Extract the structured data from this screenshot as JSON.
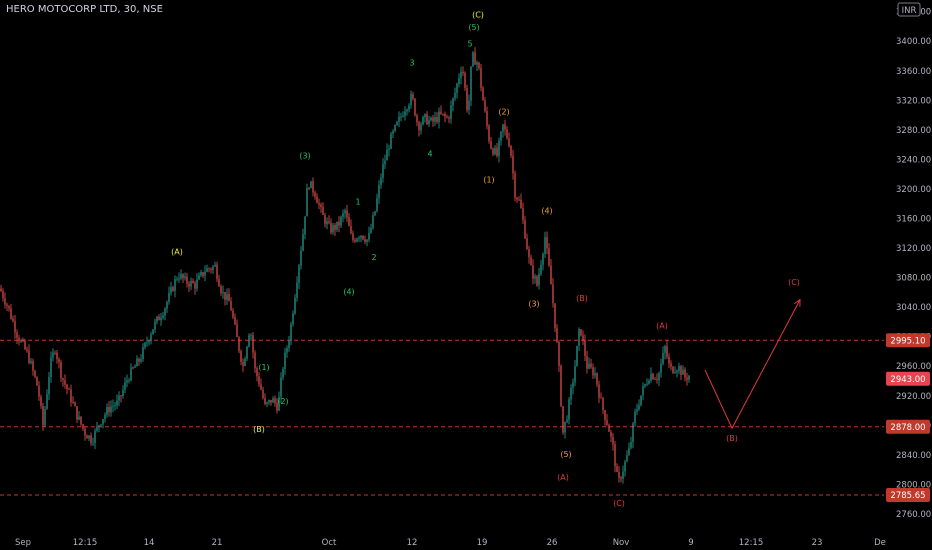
{
  "header": {
    "symbol_title": "HERO MOTOCORP LTD, 30, NSE",
    "currency": "INR"
  },
  "colors": {
    "background": "#000000",
    "up": "#26a69a",
    "down": "#ef5350",
    "wave_green": "#22c55e",
    "wave_yellow": "#e8e84a",
    "wave_orange": "#f0a030",
    "wave_red": "#e03a3a",
    "level_line": "#c0392b",
    "last_price_tag": "#e8434f",
    "level_tag": "#c0392b"
  },
  "chart_data": {
    "type": "candlestick",
    "title": "",
    "xlabel": "",
    "ylabel": "",
    "ylim": [
      2745,
      3445
    ],
    "x_tick_labels": [
      "Sep",
      "12:15",
      "14",
      "21",
      "Oct",
      "12",
      "19",
      "26",
      "Nov",
      "9",
      "12:15",
      "23",
      "De"
    ],
    "y_tick_labels": [
      2760,
      2800,
      2840,
      2880,
      2920,
      2960,
      3000,
      3040,
      3080,
      3120,
      3160,
      3200,
      3240,
      3280,
      3320,
      3360,
      3400,
      3440
    ],
    "price_path": [
      [
        0,
        3065
      ],
      [
        8,
        3040
      ],
      [
        18,
        3000
      ],
      [
        28,
        2975
      ],
      [
        38,
        2930
      ],
      [
        43,
        2880
      ],
      [
        50,
        2960
      ],
      [
        55,
        2985
      ],
      [
        62,
        2945
      ],
      [
        70,
        2920
      ],
      [
        78,
        2890
      ],
      [
        85,
        2870
      ],
      [
        92,
        2860
      ],
      [
        100,
        2885
      ],
      [
        110,
        2905
      ],
      [
        118,
        2910
      ],
      [
        128,
        2945
      ],
      [
        140,
        2970
      ],
      [
        152,
        3010
      ],
      [
        165,
        3040
      ],
      [
        178,
        3085
      ],
      [
        185,
        3075
      ],
      [
        195,
        3070
      ],
      [
        205,
        3090
      ],
      [
        215,
        3095
      ],
      [
        222,
        3060
      ],
      [
        230,
        3045
      ],
      [
        238,
        2990
      ],
      [
        243,
        2960
      ],
      [
        250,
        3015
      ],
      [
        255,
        2955
      ],
      [
        260,
        2935
      ],
      [
        265,
        2905
      ],
      [
        272,
        2915
      ],
      [
        278,
        2905
      ],
      [
        283,
        2960
      ],
      [
        290,
        3005
      ],
      [
        297,
        3080
      ],
      [
        303,
        3140
      ],
      [
        308,
        3210
      ],
      [
        315,
        3195
      ],
      [
        322,
        3165
      ],
      [
        330,
        3145
      ],
      [
        338,
        3150
      ],
      [
        345,
        3170
      ],
      [
        352,
        3130
      ],
      [
        360,
        3140
      ],
      [
        368,
        3130
      ],
      [
        375,
        3170
      ],
      [
        382,
        3225
      ],
      [
        390,
        3265
      ],
      [
        398,
        3290
      ],
      [
        405,
        3310
      ],
      [
        412,
        3325
      ],
      [
        418,
        3285
      ],
      [
        425,
        3295
      ],
      [
        432,
        3290
      ],
      [
        440,
        3300
      ],
      [
        448,
        3295
      ],
      [
        455,
        3330
      ],
      [
        462,
        3370
      ],
      [
        468,
        3300
      ],
      [
        472,
        3380
      ],
      [
        478,
        3370
      ],
      [
        484,
        3310
      ],
      [
        490,
        3260
      ],
      [
        497,
        3245
      ],
      [
        503,
        3285
      ],
      [
        510,
        3260
      ],
      [
        515,
        3195
      ],
      [
        520,
        3180
      ],
      [
        525,
        3140
      ],
      [
        530,
        3095
      ],
      [
        537,
        3070
      ],
      [
        545,
        3135
      ],
      [
        552,
        3060
      ],
      [
        558,
        2975
      ],
      [
        563,
        2870
      ],
      [
        568,
        2900
      ],
      [
        574,
        2950
      ],
      [
        580,
        3015
      ],
      [
        587,
        2960
      ],
      [
        595,
        2950
      ],
      [
        602,
        2905
      ],
      [
        608,
        2880
      ],
      [
        613,
        2850
      ],
      [
        618,
        2800
      ],
      [
        624,
        2825
      ],
      [
        630,
        2850
      ],
      [
        635,
        2895
      ],
      [
        642,
        2925
      ],
      [
        650,
        2950
      ],
      [
        658,
        2945
      ],
      [
        665,
        2985
      ],
      [
        670,
        2955
      ],
      [
        678,
        2960
      ],
      [
        685,
        2945
      ],
      [
        690,
        2948
      ]
    ],
    "projection_path": [
      [
        705,
        2955
      ],
      [
        732,
        2876
      ],
      [
        800,
        3050
      ]
    ],
    "levels": [
      {
        "value": 2995.1,
        "label": "2995.10"
      },
      {
        "value": 2878.0,
        "label": "2878.00"
      },
      {
        "value": 2785.65,
        "label": "2785.65"
      }
    ],
    "last_price": {
      "value": 2943.0,
      "label": "2943.00"
    },
    "wave_labels": [
      {
        "text": "(C)",
        "x": 478,
        "price": 3432,
        "color": "wave_yellow"
      },
      {
        "text": "(5)",
        "x": 474,
        "price": 3415,
        "color": "wave_green"
      },
      {
        "text": "5",
        "x": 470,
        "price": 3393,
        "color": "wave_green"
      },
      {
        "text": "3",
        "x": 412,
        "price": 3367,
        "color": "wave_green"
      },
      {
        "text": "4",
        "x": 430,
        "price": 3244,
        "color": "wave_green"
      },
      {
        "text": "(2)",
        "x": 504,
        "price": 3301,
        "color": "wave_orange"
      },
      {
        "text": "(1)",
        "x": 489,
        "price": 3209,
        "color": "wave_orange"
      },
      {
        "text": "(3)",
        "x": 305,
        "price": 3241,
        "color": "wave_green"
      },
      {
        "text": "1",
        "x": 358,
        "price": 3179,
        "color": "wave_green"
      },
      {
        "text": "2",
        "x": 374,
        "price": 3104,
        "color": "wave_green"
      },
      {
        "text": "(4)",
        "x": 349,
        "price": 3057,
        "color": "wave_green"
      },
      {
        "text": "(4)",
        "x": 547,
        "price": 3167,
        "color": "wave_orange"
      },
      {
        "text": "(3)",
        "x": 534,
        "price": 3041,
        "color": "wave_orange"
      },
      {
        "text": "(A)",
        "x": 177,
        "price": 3111,
        "color": "wave_yellow"
      },
      {
        "text": "(B)",
        "x": 259,
        "price": 2871,
        "color": "wave_yellow"
      },
      {
        "text": "(1)",
        "x": 264,
        "price": 2955,
        "color": "wave_green"
      },
      {
        "text": "(2)",
        "x": 283,
        "price": 2909,
        "color": "wave_green"
      },
      {
        "text": "(B)",
        "x": 582,
        "price": 3048,
        "color": "wave_red"
      },
      {
        "text": "(5)",
        "x": 566,
        "price": 2837,
        "color": "wave_orange"
      },
      {
        "text": "(A)",
        "x": 563,
        "price": 2806,
        "color": "wave_red"
      },
      {
        "text": "(C)",
        "x": 619,
        "price": 2771,
        "color": "wave_red"
      },
      {
        "text": "(A)",
        "x": 662,
        "price": 3011,
        "color": "wave_red"
      },
      {
        "text": "(B)",
        "x": 732,
        "price": 2859,
        "color": "wave_red"
      },
      {
        "text": "(C)",
        "x": 794,
        "price": 3070,
        "color": "wave_red"
      }
    ]
  }
}
